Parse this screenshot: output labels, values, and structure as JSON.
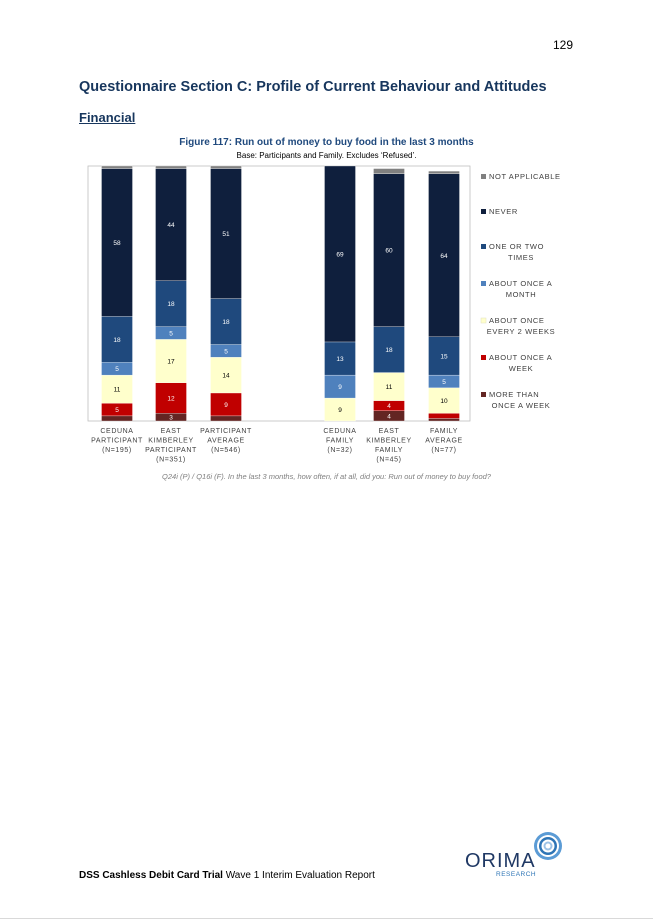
{
  "page": {
    "number": "129"
  },
  "headings": {
    "section": "Questionnaire Section C: Profile of Current Behaviour and Attitudes",
    "subsection": "Financial"
  },
  "figure": {
    "title": "Figure 117: Run out of money to buy food in the last 3 months",
    "base": "Base: Participants and Family. Excludes ‘Refused’.",
    "caption": "Q24i (P) / Q16i (F). In the last 3 months, how often, if at all, did you: Run out of money to buy food?"
  },
  "chart_data": {
    "type": "bar",
    "stacked": true,
    "percent_scale": [
      0,
      100
    ],
    "categories": [
      [
        "CEDUNA",
        "PARTICIPANT",
        "(N=195)"
      ],
      [
        "EAST",
        "KIMBERLEY",
        "PARTICIPANT",
        "(N=351)"
      ],
      [
        "PARTICIPANT",
        "AVERAGE",
        "(N=546)"
      ],
      [
        "CEDUNA",
        "FAMILY",
        "(N=32)"
      ],
      [
        "EAST",
        "KIMBERLEY",
        "FAMILY",
        "(N=45)"
      ],
      [
        "FAMILY",
        "AVERAGE",
        "(N=77)"
      ]
    ],
    "series": [
      {
        "name": "MORE THAN ONCE A WEEK",
        "legend_lines": [
          "MORE THAN",
          "ONCE A WEEK"
        ],
        "color": "#632523",
        "values": [
          2,
          3,
          2,
          0,
          4,
          1
        ],
        "labels": [
          "",
          "3",
          "",
          "",
          "4",
          ""
        ]
      },
      {
        "name": "ABOUT ONCE A WEEK",
        "legend_lines": [
          "ABOUT ONCE A",
          "WEEK"
        ],
        "color": "#c00000",
        "values": [
          5,
          12,
          9,
          0,
          4,
          2
        ],
        "labels": [
          "5",
          "12",
          "9",
          "",
          "4",
          ""
        ]
      },
      {
        "name": "ABOUT ONCE EVERY 2 WEEKS",
        "legend_lines": [
          "ABOUT ONCE",
          "EVERY 2 WEEKS"
        ],
        "color": "#ffffcc",
        "values": [
          11,
          17,
          14,
          9,
          11,
          10
        ],
        "labels": [
          "11",
          "17",
          "14",
          "9",
          "11",
          "10"
        ]
      },
      {
        "name": "ABOUT ONCE A MONTH",
        "legend_lines": [
          "ABOUT ONCE A",
          "MONTH"
        ],
        "color": "#4f81bd",
        "values": [
          5,
          5,
          5,
          9,
          0,
          5
        ],
        "labels": [
          "5",
          "5",
          "5",
          "9",
          "",
          "5"
        ]
      },
      {
        "name": "ONE OR TWO TIMES",
        "legend_lines": [
          "ONE OR TWO",
          "TIMES"
        ],
        "color": "#1f497d",
        "values": [
          18,
          18,
          18,
          13,
          18,
          15
        ],
        "labels": [
          "18",
          "18",
          "18",
          "13",
          "18",
          "15"
        ]
      },
      {
        "name": "NEVER",
        "legend_lines": [
          "NEVER"
        ],
        "color": "#0f1f3d",
        "values": [
          58,
          44,
          51,
          69,
          60,
          64
        ],
        "labels": [
          "58",
          "44",
          "51",
          "69",
          "60",
          "64"
        ]
      },
      {
        "name": "NOT APPLICABLE",
        "legend_lines": [
          "NOT APPLICABLE"
        ],
        "color": "#808080",
        "values": [
          1,
          1,
          1,
          0,
          2,
          1
        ],
        "labels": [
          "",
          "",
          "",
          "",
          "",
          ""
        ]
      }
    ],
    "legend_order": [
      "NOT APPLICABLE",
      "NEVER",
      "ONE OR TWO TIMES",
      "ABOUT ONCE A MONTH",
      "ABOUT ONCE EVERY 2 WEEKS",
      "ABOUT ONCE A WEEK",
      "MORE THAN ONCE A WEEK"
    ],
    "legend_position": "right",
    "grid": false
  },
  "footer": {
    "report_bold": "DSS Cashless Debit Card Trial",
    "report_rest": " Wave 1 Interim Evaluation Report",
    "logo_text": "ORIMA",
    "logo_subtext": "RESEARCH"
  }
}
